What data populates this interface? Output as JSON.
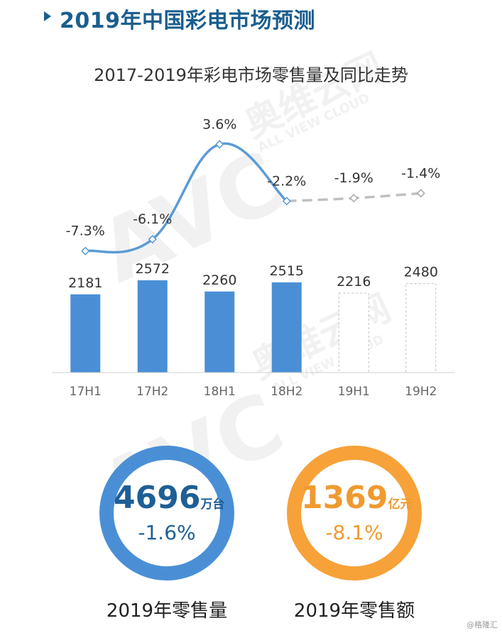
{
  "header": {
    "title": "2019年中国彩电市场预测"
  },
  "watermark": {
    "logo": "AVC",
    "brand": "奥维云网",
    "tagline": "ALL VIEW CLOUD"
  },
  "chart_data": {
    "type": "bar",
    "title": "2017-2019年彩电市场零售量及同比走势",
    "categories": [
      "17H1",
      "17H2",
      "18H1",
      "18H2",
      "19H1",
      "19H2"
    ],
    "series": [
      {
        "values": [
          2181,
          2572,
          2260,
          2515,
          2216,
          2480
        ]
      },
      {
        "values": [
          -7.3,
          -6.1,
          3.6,
          -2.2,
          -1.9,
          -1.4
        ]
      }
    ],
    "line_labels": [
      "-7.3%",
      "-6.1%",
      "3.6%",
      "-2.2%",
      "-1.9%",
      "-1.4%"
    ],
    "forecast_categories": [
      "19H1",
      "19H2"
    ],
    "colors": {
      "bar": "#4a8fd6",
      "line": "#5b9bd5",
      "forecast": "#c0c0c0"
    }
  },
  "summary": {
    "volume": {
      "value": "4696",
      "unit": "万台",
      "change": "-1.6%",
      "label": "2019年零售量",
      "color": "#4a8fd6",
      "text_color": "#1e5f96"
    },
    "revenue": {
      "value": "1369",
      "unit": "亿元",
      "change": "-8.1%",
      "label": "2019年零售额",
      "color": "#f7a139",
      "text_color": "#f09a30"
    }
  },
  "credit": "@格隆汇"
}
